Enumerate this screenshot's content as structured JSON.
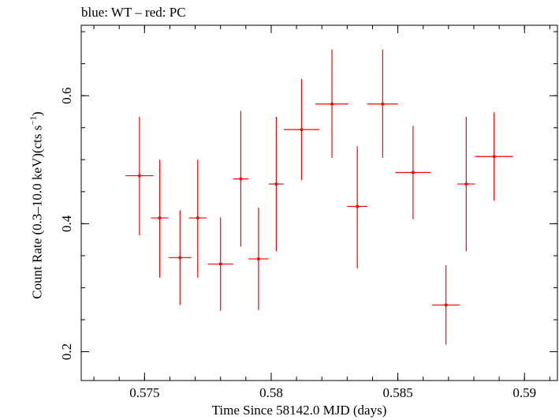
{
  "chart_data": {
    "type": "scatter",
    "title": "blue: WT – red: PC",
    "xlabel": "Time Since 58142.0 MJD (days)",
    "ylabel": "Count Rate (0.3–10.0 keV)(cts s",
    "ylabel_sup": "−1",
    "ylabel_tail": ")",
    "xlim": [
      0.5725,
      0.5913
    ],
    "ylim": [
      0.155,
      0.71
    ],
    "x_ticks": [
      {
        "value": 0.575,
        "label": "0.575"
      },
      {
        "value": 0.58,
        "label": "0.58"
      },
      {
        "value": 0.585,
        "label": "0.585"
      },
      {
        "value": 0.59,
        "label": "0.59"
      }
    ],
    "y_ticks": [
      {
        "value": 0.2,
        "label": "0.2"
      },
      {
        "value": 0.4,
        "label": "0.4"
      },
      {
        "value": 0.6,
        "label": "0.6"
      }
    ],
    "series": [
      {
        "color": "#ff0000",
        "points": [
          {
            "x": 0.5748,
            "xerr": 0.00055,
            "y": 0.475,
            "ylo": 0.382,
            "yhi": 0.567
          },
          {
            "x": 0.5756,
            "xerr": 0.00035,
            "y": 0.409,
            "ylo": 0.316,
            "yhi": 0.5
          },
          {
            "x": 0.5764,
            "xerr": 0.00045,
            "y": 0.347,
            "ylo": 0.273,
            "yhi": 0.421
          },
          {
            "x": 0.5771,
            "xerr": 0.00035,
            "y": 0.409,
            "ylo": 0.316,
            "yhi": 0.5
          },
          {
            "x": 0.578,
            "xerr": 0.0005,
            "y": 0.337,
            "ylo": 0.264,
            "yhi": 0.41
          },
          {
            "x": 0.5788,
            "xerr": 0.0003,
            "y": 0.47,
            "ylo": 0.364,
            "yhi": 0.576
          },
          {
            "x": 0.5795,
            "xerr": 0.0004,
            "y": 0.345,
            "ylo": 0.265,
            "yhi": 0.425
          },
          {
            "x": 0.5802,
            "xerr": 0.0003,
            "y": 0.462,
            "ylo": 0.357,
            "yhi": 0.567
          },
          {
            "x": 0.5812,
            "xerr": 0.0007,
            "y": 0.547,
            "ylo": 0.468,
            "yhi": 0.626
          },
          {
            "x": 0.5824,
            "xerr": 0.00065,
            "y": 0.587,
            "ylo": 0.503,
            "yhi": 0.672
          },
          {
            "x": 0.5834,
            "xerr": 0.0004,
            "y": 0.427,
            "ylo": 0.33,
            "yhi": 0.521
          },
          {
            "x": 0.5844,
            "xerr": 0.0006,
            "y": 0.587,
            "ylo": 0.503,
            "yhi": 0.672
          },
          {
            "x": 0.5856,
            "xerr": 0.0007,
            "y": 0.48,
            "ylo": 0.407,
            "yhi": 0.553
          },
          {
            "x": 0.5869,
            "xerr": 0.00055,
            "y": 0.273,
            "ylo": 0.211,
            "yhi": 0.335
          },
          {
            "x": 0.5877,
            "xerr": 0.00035,
            "y": 0.462,
            "ylo": 0.357,
            "yhi": 0.567
          },
          {
            "x": 0.5888,
            "xerr": 0.00075,
            "y": 0.505,
            "ylo": 0.436,
            "yhi": 0.574
          }
        ]
      }
    ],
    "grid": false,
    "legend": "none"
  }
}
